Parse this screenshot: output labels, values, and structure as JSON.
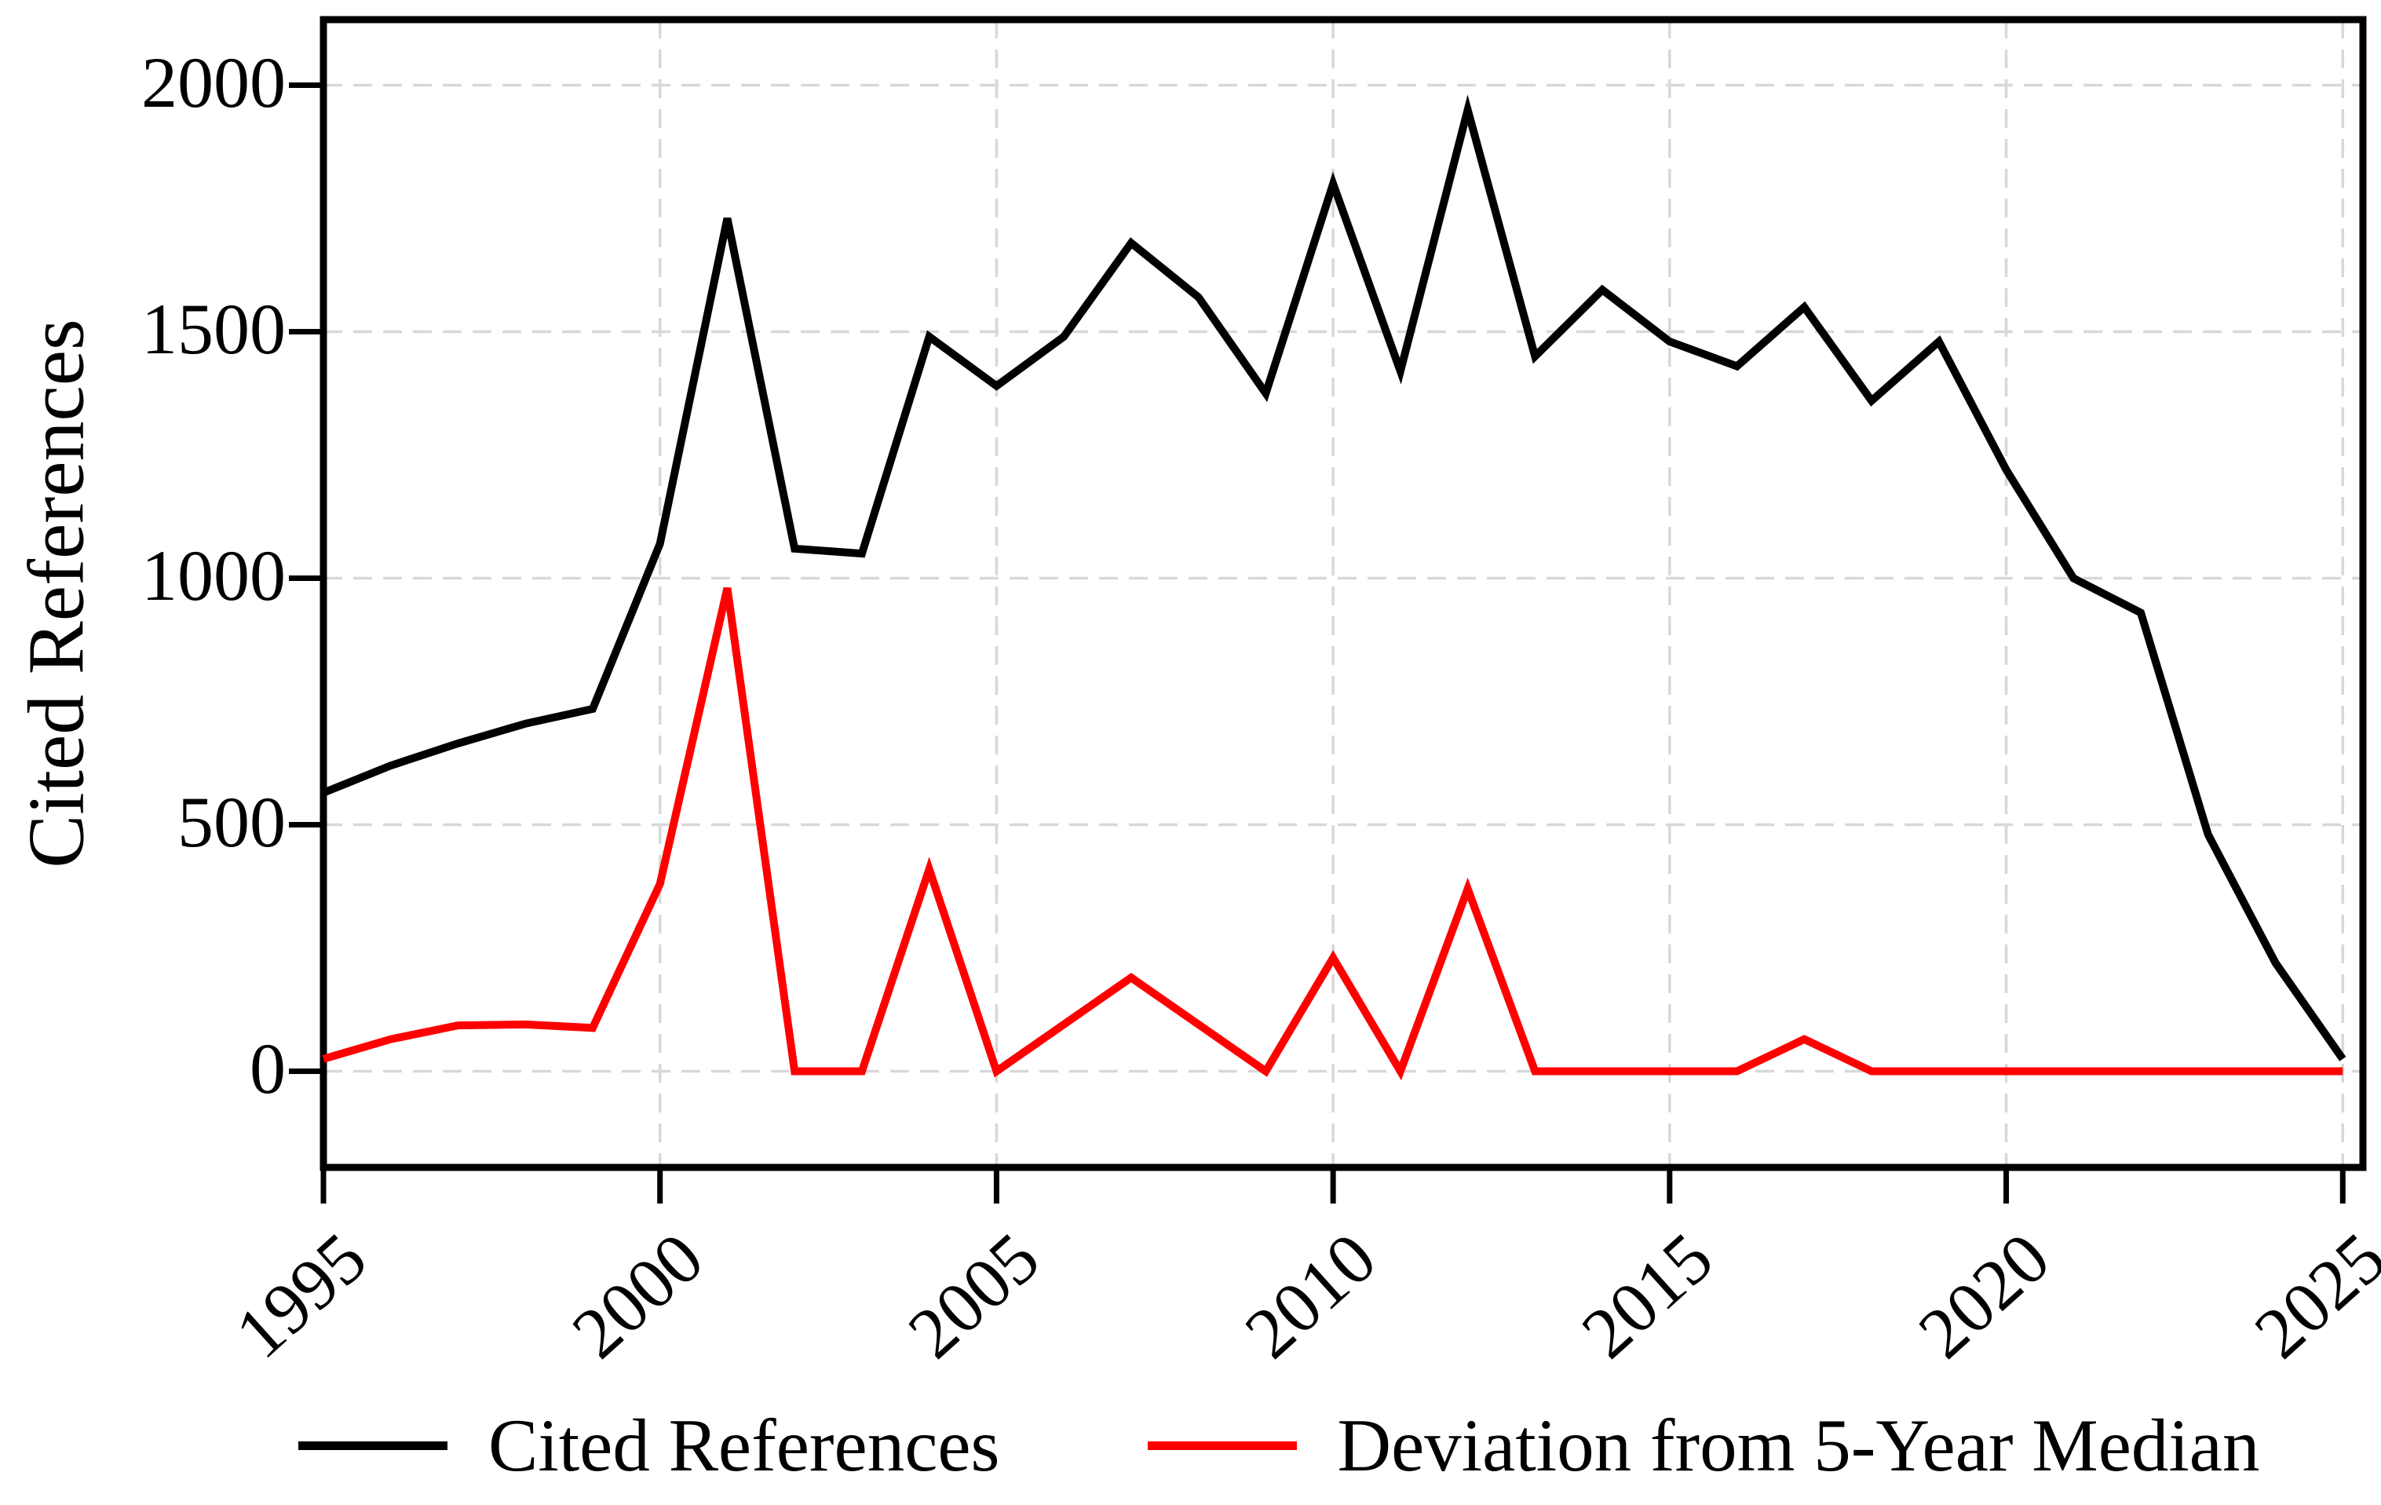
{
  "figure": {
    "background": "#ffffff"
  },
  "axes": {
    "y_label": "Cited References",
    "x_label": "",
    "grid_color": "#d8d8d8",
    "spine_color": "#000000"
  },
  "chart_data": {
    "type": "line",
    "title": "",
    "xlabel": "",
    "ylabel": "Cited References",
    "grid": true,
    "legend_position": "bottom",
    "x": [
      1995,
      1996,
      1997,
      1998,
      1999,
      2000,
      2001,
      2002,
      2003,
      2004,
      2005,
      2006,
      2007,
      2008,
      2009,
      2010,
      2011,
      2012,
      2013,
      2014,
      2015,
      2016,
      2017,
      2018,
      2019,
      2020,
      2021,
      2022,
      2023,
      2024,
      2025
    ],
    "x_ticks": [
      1995,
      2000,
      2005,
      2010,
      2015,
      2020,
      2025
    ],
    "y_ticks": [
      0,
      500,
      1000,
      1500,
      2000
    ],
    "xlim": [
      1995,
      2025.3
    ],
    "ylim": [
      -195,
      2133
    ],
    "series": [
      {
        "name": "Cited References",
        "color": "#000000",
        "values": [
          565,
          620,
          665,
          705,
          735,
          1070,
          1730,
          1060,
          1050,
          1490,
          1390,
          1490,
          1680,
          1570,
          1375,
          1800,
          1420,
          1950,
          1450,
          1585,
          1480,
          1430,
          1550,
          1360,
          1480,
          1220,
          1000,
          930,
          480,
          220,
          25
        ]
      },
      {
        "name": "Deviation from 5-Year Median",
        "color": "#ff0000",
        "values": [
          25,
          65,
          93,
          95,
          88,
          380,
          980,
          0,
          0,
          410,
          0,
          95,
          190,
          95,
          0,
          230,
          0,
          370,
          0,
          0,
          0,
          0,
          65,
          0,
          0,
          0,
          0,
          0,
          0,
          0,
          0
        ]
      }
    ]
  },
  "legend": {
    "items": [
      {
        "label": "Cited References",
        "color": "#000000"
      },
      {
        "label": "Deviation from 5-Year Median",
        "color": "#ff0000"
      }
    ]
  }
}
